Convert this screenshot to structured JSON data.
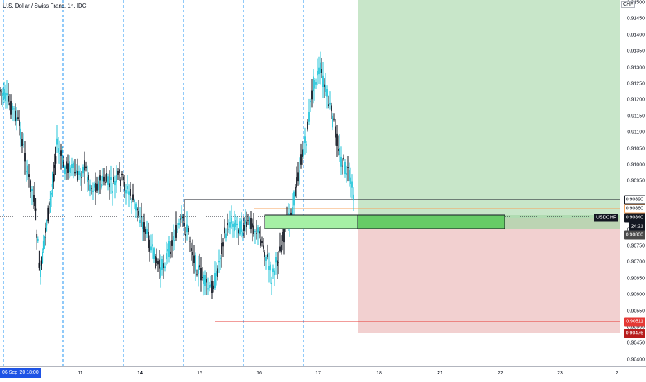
{
  "header": {
    "title": "U.S. Dollar / Swiss Franc, 1h, IDC"
  },
  "price_scale": {
    "currency": "CHF",
    "ticks": [
      "0.91500",
      "0.91450",
      "0.91400",
      "0.91350",
      "0.91300",
      "0.91250",
      "0.91200",
      "0.91150",
      "0.91100",
      "0.91050",
      "0.91000",
      "0.90950",
      "0.90900",
      "0.90850",
      "0.90800",
      "0.90750",
      "0.90700",
      "0.90650",
      "0.90600",
      "0.90550",
      "0.90500",
      "0.90450",
      "0.90400"
    ],
    "badges": [
      {
        "label": "0.90890",
        "color": "#131722",
        "bg": "#ffffff",
        "border": "#131722"
      },
      {
        "label": "0.90860",
        "color": "#131722",
        "bg": "#ffffff",
        "border": "#f7a35c"
      },
      {
        "label": "0.90840",
        "color": "#ffffff",
        "bg": "#131722",
        "border": "#131722"
      },
      {
        "label": "24:21",
        "color": "#ffffff",
        "bg": "#131722",
        "border": "#131722"
      },
      {
        "label": "0.90800",
        "color": "#ffffff",
        "bg": "#4a4a4a",
        "border": "#4a4a4a"
      },
      {
        "label": "0.90511",
        "color": "#ffffff",
        "bg": "#e53935",
        "border": "#e53935"
      },
      {
        "label": "0.90476",
        "color": "#ffffff",
        "bg": "#b71c1c",
        "border": "#b71c1c"
      }
    ],
    "symbol": "USDCHF"
  },
  "time_scale": {
    "current": "06 Sep '20  18:00",
    "labels": [
      {
        "text": "11",
        "bold": false
      },
      {
        "text": "14",
        "bold": true
      },
      {
        "text": "15",
        "bold": false
      },
      {
        "text": "16",
        "bold": false
      },
      {
        "text": "17",
        "bold": false
      },
      {
        "text": "18",
        "bold": false
      },
      {
        "text": "21",
        "bold": true
      },
      {
        "text": "22",
        "bold": false
      },
      {
        "text": "23",
        "bold": false
      },
      {
        "text": "2",
        "bold": false
      }
    ]
  },
  "colors": {
    "up": "#26c6da",
    "down": "#131722",
    "target_zone": "#c8e6c9",
    "stop_zone": "#f2d0d0",
    "entry_zone": "#a5d6a7",
    "dashed": "#2196f3"
  }
}
